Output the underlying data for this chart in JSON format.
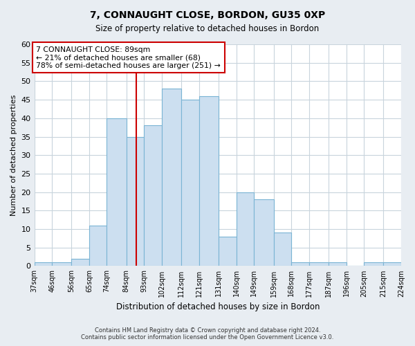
{
  "title": "7, CONNAUGHT CLOSE, BORDON, GU35 0XP",
  "subtitle": "Size of property relative to detached houses in Bordon",
  "xlabel": "Distribution of detached houses by size in Bordon",
  "ylabel": "Number of detached properties",
  "bins": [
    37,
    46,
    56,
    65,
    74,
    84,
    93,
    102,
    112,
    121,
    131,
    140,
    149,
    159,
    168,
    177,
    187,
    196,
    205,
    215,
    224
  ],
  "counts": [
    1,
    1,
    2,
    11,
    40,
    35,
    38,
    48,
    45,
    46,
    8,
    20,
    18,
    9,
    1,
    1,
    1,
    0,
    1,
    1
  ],
  "bin_labels": [
    "37sqm",
    "46sqm",
    "56sqm",
    "65sqm",
    "74sqm",
    "84sqm",
    "93sqm",
    "102sqm",
    "112sqm",
    "121sqm",
    "131sqm",
    "140sqm",
    "149sqm",
    "159sqm",
    "168sqm",
    "177sqm",
    "187sqm",
    "196sqm",
    "205sqm",
    "215sqm",
    "224sqm"
  ],
  "bar_color": "#ccdff0",
  "bar_edge_color": "#7ab4d4",
  "vline_color": "#cc0000",
  "vline_x": 89,
  "box_text_line1": "7 CONNAUGHT CLOSE: 89sqm",
  "box_text_line2": "← 21% of detached houses are smaller (68)",
  "box_text_line3": "78% of semi-detached houses are larger (251) →",
  "box_edge_color": "#cc0000",
  "ylim": [
    0,
    60
  ],
  "yticks": [
    0,
    5,
    10,
    15,
    20,
    25,
    30,
    35,
    40,
    45,
    50,
    55,
    60
  ],
  "footer_line1": "Contains HM Land Registry data © Crown copyright and database right 2024.",
  "footer_line2": "Contains public sector information licensed under the Open Government Licence v3.0.",
  "bg_color": "#e8edf2",
  "plot_bg_color": "#ffffff",
  "grid_color": "#c8d4dc"
}
